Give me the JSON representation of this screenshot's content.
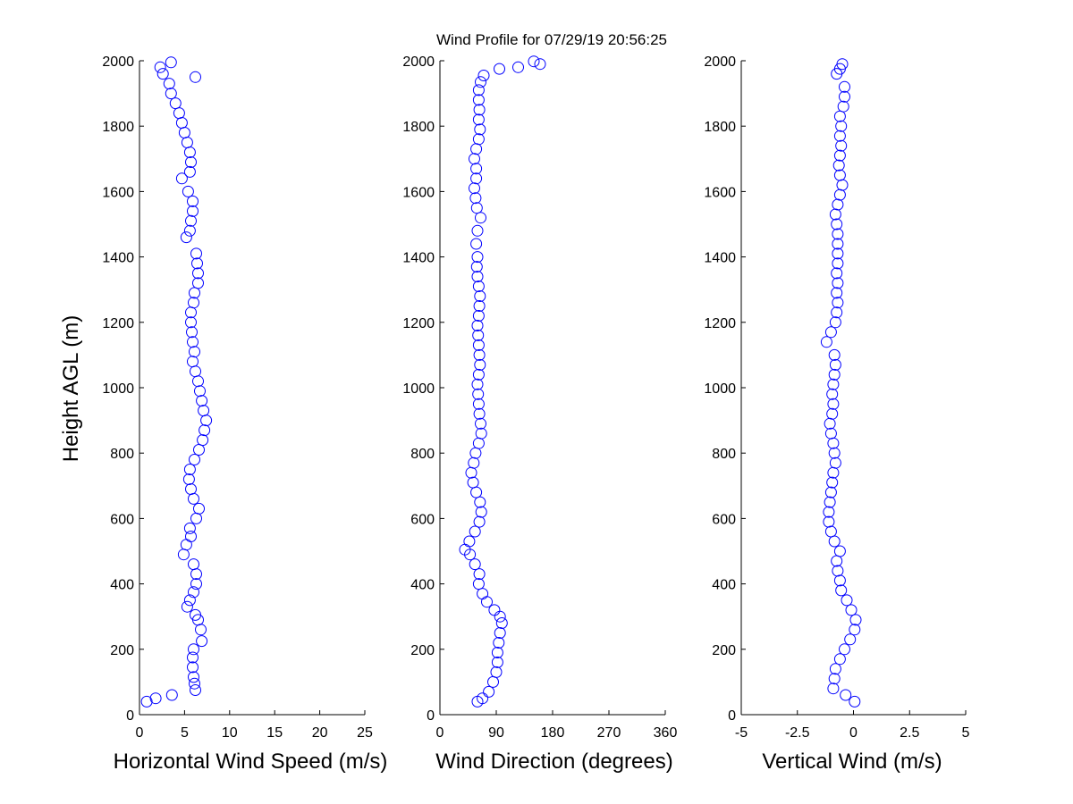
{
  "title": "Wind Profile for  07/29/19 20:56:25",
  "ylabel": "Height AGL (m)",
  "marker_color": "#0000ff",
  "chart_data": [
    {
      "type": "scatter",
      "xlabel": "Horizontal Wind Speed (m/s)",
      "ylabel": "Height AGL (m)",
      "xlim": [
        0,
        25
      ],
      "ylim": [
        0,
        2000
      ],
      "xticks": [
        "0",
        "5",
        "10",
        "15",
        "20",
        "25"
      ],
      "xtick_values": [
        0,
        5,
        10,
        15,
        20,
        25
      ],
      "yticks": [
        "0",
        "200",
        "400",
        "600",
        "800",
        "1000",
        "1200",
        "1400",
        "1600",
        "1800",
        "2000"
      ],
      "ytick_values": [
        0,
        200,
        400,
        600,
        800,
        1000,
        1200,
        1400,
        1600,
        1800,
        2000
      ],
      "grid": false,
      "marker": "open-circle",
      "points": [
        [
          0.8,
          40
        ],
        [
          1.8,
          50
        ],
        [
          3.6,
          60
        ],
        [
          6.2,
          75
        ],
        [
          6.1,
          95
        ],
        [
          6.0,
          115
        ],
        [
          5.9,
          145
        ],
        [
          5.9,
          175
        ],
        [
          6.0,
          200
        ],
        [
          6.9,
          225
        ],
        [
          6.8,
          260
        ],
        [
          6.5,
          290
        ],
        [
          6.2,
          305
        ],
        [
          5.3,
          330
        ],
        [
          5.6,
          350
        ],
        [
          6.0,
          375
        ],
        [
          6.3,
          400
        ],
        [
          6.3,
          430
        ],
        [
          6.0,
          460
        ],
        [
          4.9,
          490
        ],
        [
          5.2,
          520
        ],
        [
          5.7,
          545
        ],
        [
          5.6,
          570
        ],
        [
          6.3,
          600
        ],
        [
          6.6,
          630
        ],
        [
          6.0,
          660
        ],
        [
          5.7,
          690
        ],
        [
          5.5,
          720
        ],
        [
          5.6,
          750
        ],
        [
          6.1,
          780
        ],
        [
          6.6,
          810
        ],
        [
          7.0,
          840
        ],
        [
          7.2,
          870
        ],
        [
          7.4,
          900
        ],
        [
          7.1,
          930
        ],
        [
          6.9,
          960
        ],
        [
          6.7,
          990
        ],
        [
          6.5,
          1020
        ],
        [
          6.2,
          1050
        ],
        [
          5.9,
          1080
        ],
        [
          6.1,
          1110
        ],
        [
          5.9,
          1140
        ],
        [
          5.8,
          1170
        ],
        [
          5.7,
          1200
        ],
        [
          5.7,
          1230
        ],
        [
          6.0,
          1260
        ],
        [
          6.1,
          1290
        ],
        [
          6.5,
          1320
        ],
        [
          6.5,
          1350
        ],
        [
          6.4,
          1380
        ],
        [
          6.3,
          1410
        ],
        [
          5.2,
          1460
        ],
        [
          5.6,
          1480
        ],
        [
          5.7,
          1510
        ],
        [
          5.9,
          1540
        ],
        [
          5.9,
          1570
        ],
        [
          5.4,
          1600
        ],
        [
          4.7,
          1640
        ],
        [
          5.6,
          1660
        ],
        [
          5.7,
          1690
        ],
        [
          5.6,
          1720
        ],
        [
          5.3,
          1750
        ],
        [
          5.0,
          1780
        ],
        [
          4.7,
          1810
        ],
        [
          4.4,
          1840
        ],
        [
          4.0,
          1870
        ],
        [
          3.5,
          1900
        ],
        [
          3.3,
          1930
        ],
        [
          2.6,
          1960
        ],
        [
          2.3,
          1980
        ],
        [
          3.5,
          1995
        ],
        [
          6.2,
          1950
        ]
      ]
    },
    {
      "type": "scatter",
      "xlabel": "Wind Direction (degrees)",
      "ylabel": "Height AGL (m)",
      "xlim": [
        0,
        360
      ],
      "ylim": [
        0,
        2000
      ],
      "xticks": [
        "0",
        "90",
        "180",
        "270",
        "360"
      ],
      "xtick_values": [
        0,
        90,
        180,
        270,
        360
      ],
      "yticks": [
        "0",
        "200",
        "400",
        "600",
        "800",
        "1000",
        "1200",
        "1400",
        "1600",
        "1800",
        "2000"
      ],
      "ytick_values": [
        0,
        200,
        400,
        600,
        800,
        1000,
        1200,
        1400,
        1600,
        1800,
        2000
      ],
      "grid": false,
      "marker": "open-circle",
      "points": [
        [
          60,
          40
        ],
        [
          68,
          50
        ],
        [
          78,
          70
        ],
        [
          85,
          100
        ],
        [
          90,
          130
        ],
        [
          92,
          160
        ],
        [
          92,
          190
        ],
        [
          94,
          220
        ],
        [
          96,
          250
        ],
        [
          99,
          280
        ],
        [
          96,
          300
        ],
        [
          87,
          320
        ],
        [
          75,
          345
        ],
        [
          68,
          370
        ],
        [
          62,
          400
        ],
        [
          63,
          430
        ],
        [
          56,
          460
        ],
        [
          48,
          490
        ],
        [
          40,
          505
        ],
        [
          47,
          530
        ],
        [
          56,
          560
        ],
        [
          63,
          590
        ],
        [
          66,
          620
        ],
        [
          64,
          650
        ],
        [
          58,
          680
        ],
        [
          53,
          710
        ],
        [
          50,
          740
        ],
        [
          54,
          770
        ],
        [
          57,
          800
        ],
        [
          62,
          830
        ],
        [
          66,
          860
        ],
        [
          65,
          890
        ],
        [
          63,
          920
        ],
        [
          62,
          950
        ],
        [
          61,
          980
        ],
        [
          60,
          1010
        ],
        [
          62,
          1040
        ],
        [
          64,
          1070
        ],
        [
          63,
          1100
        ],
        [
          62,
          1130
        ],
        [
          61,
          1160
        ],
        [
          60,
          1190
        ],
        [
          62,
          1220
        ],
        [
          63,
          1250
        ],
        [
          64,
          1280
        ],
        [
          62,
          1310
        ],
        [
          60,
          1340
        ],
        [
          59,
          1370
        ],
        [
          60,
          1400
        ],
        [
          58,
          1440
        ],
        [
          60,
          1480
        ],
        [
          65,
          1520
        ],
        [
          59,
          1550
        ],
        [
          57,
          1580
        ],
        [
          55,
          1610
        ],
        [
          58,
          1640
        ],
        [
          58,
          1670
        ],
        [
          55,
          1700
        ],
        [
          58,
          1730
        ],
        [
          62,
          1760
        ],
        [
          64,
          1790
        ],
        [
          62,
          1820
        ],
        [
          63,
          1850
        ],
        [
          62,
          1880
        ],
        [
          62,
          1910
        ],
        [
          65,
          1935
        ],
        [
          70,
          1955
        ],
        [
          95,
          1975
        ],
        [
          125,
          1980
        ],
        [
          150,
          1998
        ],
        [
          160,
          1990
        ]
      ]
    },
    {
      "type": "scatter",
      "xlabel": "Vertical Wind (m/s)",
      "ylabel": "Height AGL (m)",
      "xlim": [
        -5,
        5
      ],
      "ylim": [
        0,
        2000
      ],
      "xticks": [
        "-5",
        "-2.5",
        "0",
        "2.5",
        "5"
      ],
      "xtick_values": [
        -5,
        -2.5,
        0,
        2.5,
        5
      ],
      "yticks": [
        "0",
        "200",
        "400",
        "600",
        "800",
        "1000",
        "1200",
        "1400",
        "1600",
        "1800",
        "2000"
      ],
      "ytick_values": [
        0,
        200,
        400,
        600,
        800,
        1000,
        1200,
        1400,
        1600,
        1800,
        2000
      ],
      "grid": false,
      "marker": "open-circle",
      "points": [
        [
          0.05,
          40
        ],
        [
          -0.35,
          60
        ],
        [
          -0.9,
          80
        ],
        [
          -0.85,
          110
        ],
        [
          -0.8,
          140
        ],
        [
          -0.6,
          170
        ],
        [
          -0.4,
          200
        ],
        [
          -0.15,
          230
        ],
        [
          0.05,
          260
        ],
        [
          0.1,
          290
        ],
        [
          -0.1,
          320
        ],
        [
          -0.3,
          350
        ],
        [
          -0.55,
          380
        ],
        [
          -0.6,
          410
        ],
        [
          -0.7,
          440
        ],
        [
          -0.75,
          470
        ],
        [
          -0.6,
          500
        ],
        [
          -0.85,
          530
        ],
        [
          -1.0,
          560
        ],
        [
          -1.1,
          590
        ],
        [
          -1.1,
          620
        ],
        [
          -1.05,
          650
        ],
        [
          -1.0,
          680
        ],
        [
          -0.95,
          710
        ],
        [
          -0.9,
          740
        ],
        [
          -0.8,
          770
        ],
        [
          -0.85,
          800
        ],
        [
          -0.9,
          830
        ],
        [
          -1.0,
          860
        ],
        [
          -1.05,
          890
        ],
        [
          -0.95,
          920
        ],
        [
          -0.9,
          950
        ],
        [
          -0.95,
          980
        ],
        [
          -0.9,
          1010
        ],
        [
          -0.85,
          1040
        ],
        [
          -0.8,
          1070
        ],
        [
          -0.85,
          1100
        ],
        [
          -1.2,
          1140
        ],
        [
          -1.0,
          1170
        ],
        [
          -0.8,
          1200
        ],
        [
          -0.75,
          1230
        ],
        [
          -0.7,
          1260
        ],
        [
          -0.75,
          1290
        ],
        [
          -0.7,
          1320
        ],
        [
          -0.75,
          1350
        ],
        [
          -0.7,
          1380
        ],
        [
          -0.7,
          1410
        ],
        [
          -0.7,
          1440
        ],
        [
          -0.7,
          1470
        ],
        [
          -0.75,
          1500
        ],
        [
          -0.8,
          1530
        ],
        [
          -0.7,
          1560
        ],
        [
          -0.6,
          1590
        ],
        [
          -0.5,
          1620
        ],
        [
          -0.6,
          1650
        ],
        [
          -0.65,
          1680
        ],
        [
          -0.6,
          1710
        ],
        [
          -0.55,
          1740
        ],
        [
          -0.6,
          1770
        ],
        [
          -0.55,
          1800
        ],
        [
          -0.6,
          1830
        ],
        [
          -0.45,
          1860
        ],
        [
          -0.4,
          1890
        ],
        [
          -0.4,
          1920
        ],
        [
          -0.75,
          1960
        ],
        [
          -0.6,
          1975
        ],
        [
          -0.5,
          1990
        ]
      ]
    }
  ]
}
